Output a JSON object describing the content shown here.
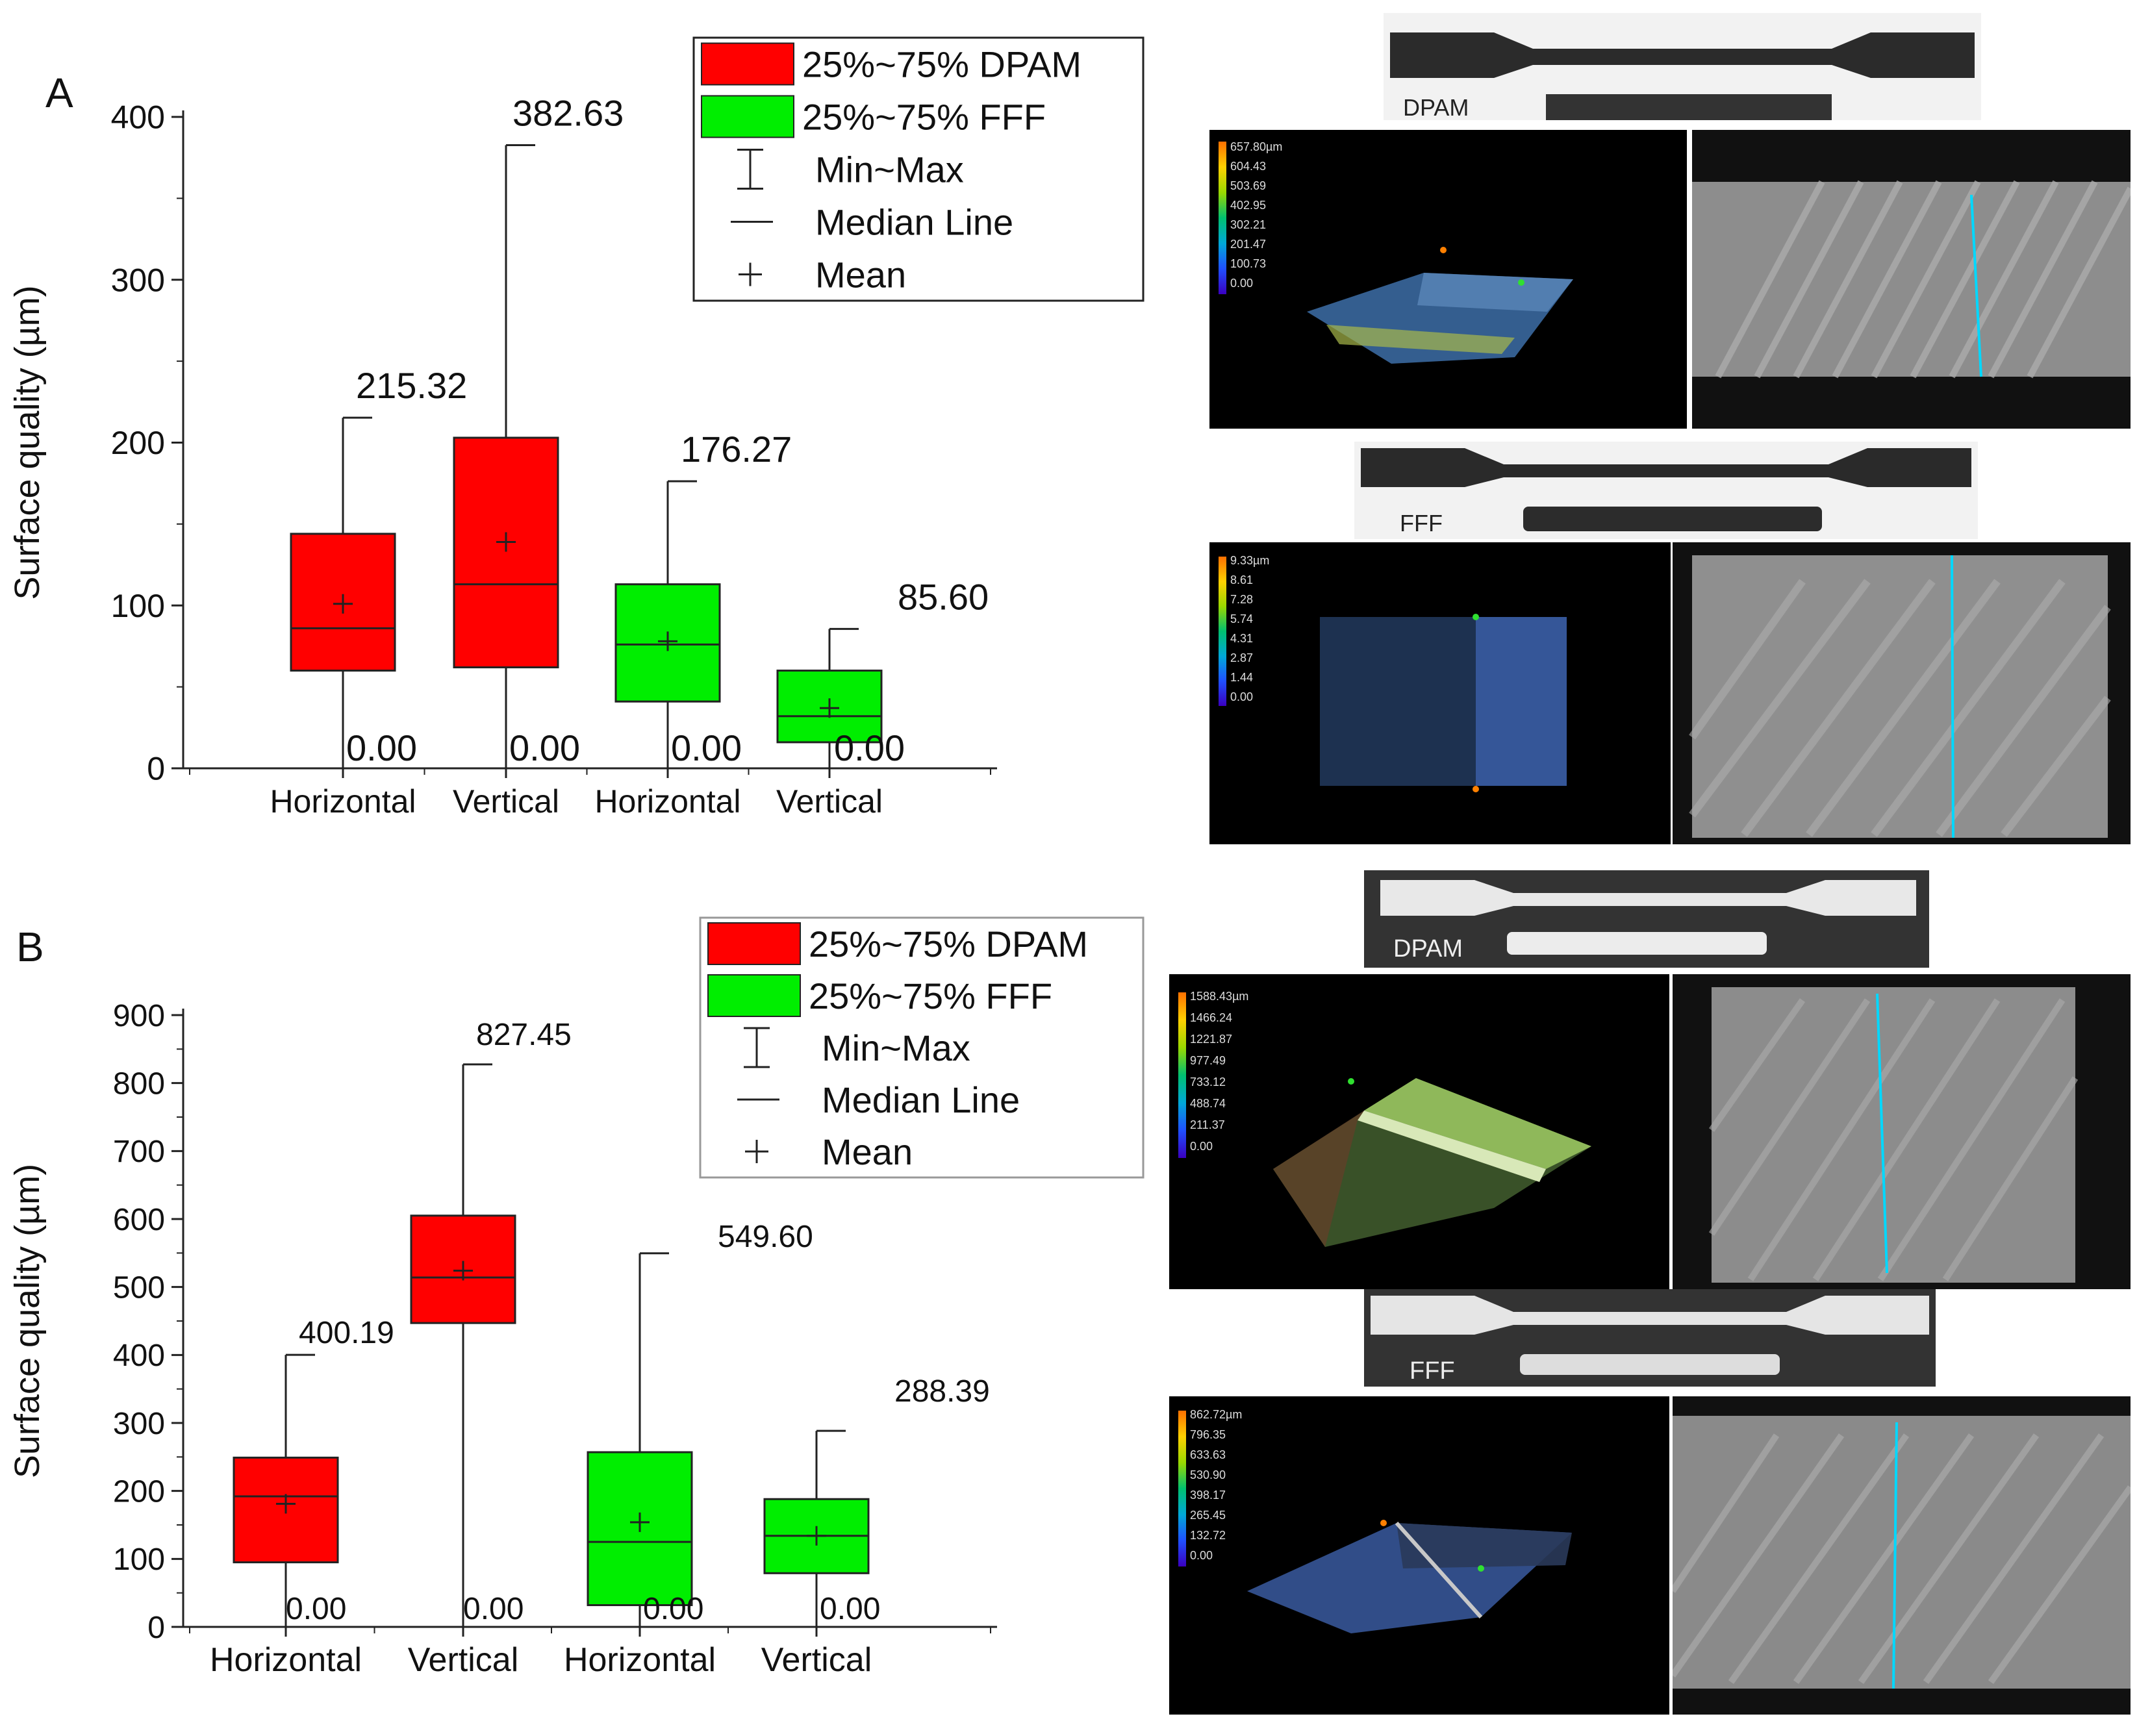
{
  "chart_data": [
    {
      "type": "box",
      "panel_label": "A",
      "ylabel": "Surface quality (µm)",
      "ylim": [
        0,
        400
      ],
      "yticks": [
        0,
        100,
        200,
        300,
        400
      ],
      "categories": [
        "Horizontal",
        "Vertical",
        "Horizontal",
        "Vertical"
      ],
      "boxes": [
        {
          "group": "DPAM",
          "category": "Horizontal",
          "min": 0,
          "q1": 60,
          "median": 86,
          "q3": 144,
          "max": 215.32,
          "mean": 101,
          "max_label": "215.32",
          "min_label": "0.00"
        },
        {
          "group": "DPAM",
          "category": "Vertical",
          "min": 0,
          "q1": 62,
          "median": 113,
          "q3": 203,
          "max": 382.63,
          "mean": 139,
          "max_label": "382.63",
          "min_label": "0.00"
        },
        {
          "group": "FFF",
          "category": "Horizontal",
          "min": 0,
          "q1": 41,
          "median": 76,
          "q3": 113,
          "max": 176.27,
          "mean": 78,
          "max_label": "176.27",
          "min_label": "0.00"
        },
        {
          "group": "FFF",
          "category": "Vertical",
          "min": 0,
          "q1": 16,
          "median": 32,
          "q3": 60,
          "max": 85.6,
          "mean": 37,
          "max_label": "85.60",
          "min_label": "0.00"
        }
      ],
      "legend": [
        "25%~75% DPAM",
        "25%~75% FFF",
        "Min~Max",
        "Median Line",
        "Mean"
      ],
      "colors": {
        "DPAM": "#ff0000",
        "FFF": "#00ee00"
      },
      "legend_position": "top-right"
    },
    {
      "type": "box",
      "panel_label": "B",
      "ylabel": "Surface quality (µm)",
      "ylim": [
        0,
        900
      ],
      "yticks": [
        0,
        100,
        200,
        300,
        400,
        500,
        600,
        700,
        800,
        900
      ],
      "categories": [
        "Horizontal",
        "Vertical",
        "Horizontal",
        "Vertical"
      ],
      "boxes": [
        {
          "group": "DPAM",
          "category": "Horizontal",
          "min": 0,
          "q1": 95,
          "median": 192,
          "q3": 249,
          "max": 400.19,
          "mean": 181,
          "max_label": "400.19",
          "min_label": "0.00"
        },
        {
          "group": "DPAM",
          "category": "Vertical",
          "min": 0,
          "q1": 447,
          "median": 514,
          "q3": 605,
          "max": 827.45,
          "mean": 524,
          "max_label": "827.45",
          "min_label": "0.00"
        },
        {
          "group": "FFF",
          "category": "Horizontal",
          "min": 0,
          "q1": 32,
          "median": 125,
          "q3": 257,
          "max": 549.6,
          "mean": 154,
          "max_label": "549.60",
          "min_label": "0.00"
        },
        {
          "group": "FFF",
          "category": "Vertical",
          "min": 0,
          "q1": 79,
          "median": 134,
          "q3": 188,
          "max": 288.39,
          "mean": 134,
          "max_label": "288.39",
          "min_label": "0.00"
        }
      ],
      "legend": [
        "25%~75% DPAM",
        "25%~75% FFF",
        "Min~Max",
        "Median Line",
        "Mean"
      ],
      "colors": {
        "DPAM": "#ff0000",
        "FFF": "#00ee00"
      },
      "legend_position": "top-right"
    }
  ],
  "photos": {
    "specimen_labels": [
      "DPAM",
      "FFF",
      "DPAM",
      "FFF"
    ],
    "scale_a_dpam": [
      "657.80µm",
      "604.43",
      "503.69",
      "402.95",
      "302.21",
      "201.47",
      "100.73",
      "0.00"
    ],
    "scale_a_fff": [
      "9.33µm",
      "8.61",
      "7.28",
      "5.74",
      "4.31",
      "2.87",
      "1.44",
      "0.00"
    ],
    "scale_b_dpam": [
      "1588.43µm",
      "1466.24",
      "1221.87",
      "977.49",
      "733.12",
      "488.74",
      "211.37",
      "0.00"
    ],
    "scale_b_fff": [
      "862.72µm",
      "796.35",
      "633.63",
      "530.90",
      "398.17",
      "265.45",
      "132.72",
      "0.00"
    ]
  }
}
